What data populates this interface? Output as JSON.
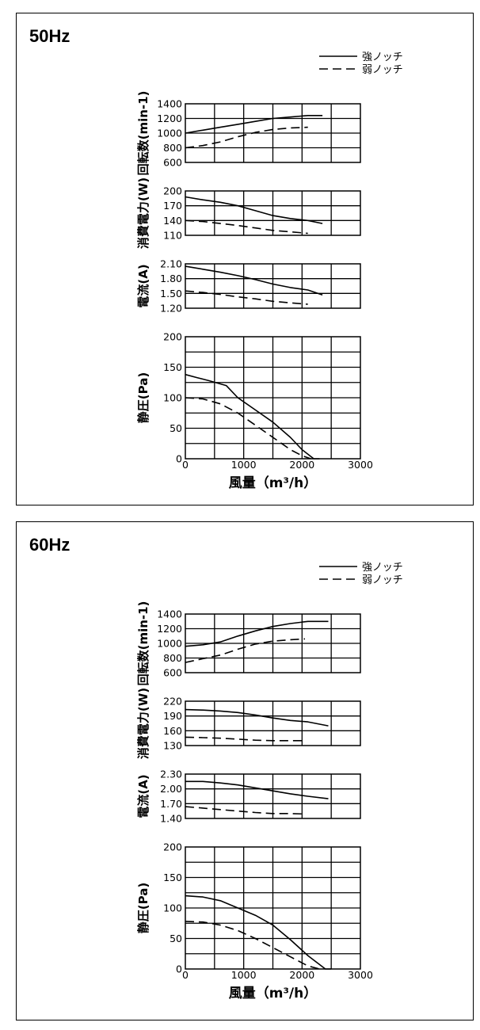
{
  "chart_data": [
    {
      "type": "line",
      "title": "50Hz",
      "legend": {
        "placement": "top-right",
        "entries": [
          "強ノッチ",
          "弱ノッチ"
        ]
      },
      "xlabel": "風量（m³/h）",
      "xlim": [
        0,
        3000
      ],
      "x_ticks": [
        "0",
        "1000",
        "2000",
        "3000"
      ],
      "subplots": [
        {
          "ylabel": "回転数(min-1)",
          "ylim": [
            600,
            1400
          ],
          "y_ticks": [
            "1400",
            "1200",
            "1000",
            "800",
            "600"
          ],
          "series": [
            {
              "name": "強ノッチ",
              "dash": "solid",
              "x": [
                0,
                300,
                600,
                900,
                1200,
                1500,
                1800,
                2100,
                2350
              ],
              "y": [
                1000,
                1040,
                1080,
                1120,
                1160,
                1200,
                1220,
                1240,
                1240
              ]
            },
            {
              "name": "弱ノッチ",
              "dash": "dashed",
              "x": [
                0,
                300,
                600,
                900,
                1200,
                1500,
                1800,
                2100
              ],
              "y": [
                800,
                830,
                880,
                950,
                1010,
                1050,
                1070,
                1080
              ]
            }
          ]
        },
        {
          "ylabel": "消費電力(W)",
          "ylim": [
            110,
            200
          ],
          "y_ticks": [
            "200",
            "170",
            "140",
            "110"
          ],
          "series": [
            {
              "name": "強ノッチ",
              "dash": "solid",
              "x": [
                0,
                300,
                600,
                900,
                1200,
                1500,
                1800,
                2100,
                2350
              ],
              "y": [
                188,
                182,
                177,
                170,
                160,
                150,
                144,
                140,
                134
              ]
            },
            {
              "name": "弱ノッチ",
              "dash": "dashed",
              "x": [
                0,
                300,
                600,
                900,
                1200,
                1500,
                1800,
                2100
              ],
              "y": [
                140,
                138,
                134,
                130,
                125,
                120,
                117,
                114
              ]
            }
          ]
        },
        {
          "ylabel": "電流(A)",
          "ylim": [
            1.2,
            2.1
          ],
          "y_ticks": [
            "2.10",
            "1.80",
            "1.50",
            "1.20"
          ],
          "series": [
            {
              "name": "強ノッチ",
              "dash": "solid",
              "x": [
                0,
                300,
                600,
                900,
                1200,
                1500,
                1800,
                2100,
                2350
              ],
              "y": [
                2.05,
                1.99,
                1.93,
                1.86,
                1.78,
                1.69,
                1.62,
                1.57,
                1.47
              ]
            },
            {
              "name": "弱ノッチ",
              "dash": "dashed",
              "x": [
                0,
                300,
                600,
                900,
                1200,
                1500,
                1800,
                2100
              ],
              "y": [
                1.55,
                1.52,
                1.48,
                1.43,
                1.39,
                1.34,
                1.31,
                1.28
              ]
            }
          ]
        },
        {
          "ylabel": "静圧(Pa)",
          "ylim": [
            0,
            200
          ],
          "y_ticks": [
            "200",
            "150",
            "100",
            "50",
            "0"
          ],
          "series": [
            {
              "name": "強ノッチ",
              "dash": "solid",
              "x": [
                0,
                200,
                400,
                700,
                900,
                1200,
                1500,
                1800,
                2000,
                2200,
                2300
              ],
              "y": [
                138,
                133,
                128,
                120,
                100,
                80,
                60,
                35,
                15,
                0,
                0
              ]
            },
            {
              "name": "弱ノッチ",
              "dash": "dashed",
              "x": [
                0,
                300,
                600,
                900,
                1200,
                1500,
                1800,
                2000,
                2150
              ],
              "y": [
                100,
                98,
                90,
                75,
                55,
                35,
                15,
                5,
                0
              ]
            }
          ]
        }
      ]
    },
    {
      "type": "line",
      "title": "60Hz",
      "legend": {
        "placement": "top-right",
        "entries": [
          "強ノッチ",
          "弱ノッチ"
        ]
      },
      "xlabel": "風量（m³/h）",
      "xlim": [
        0,
        3000
      ],
      "x_ticks": [
        "0",
        "1000",
        "2000",
        "3000"
      ],
      "subplots": [
        {
          "ylabel": "回転数(min-1)",
          "ylim": [
            600,
            1400
          ],
          "y_ticks": [
            "1400",
            "1200",
            "1000",
            "800",
            "600"
          ],
          "series": [
            {
              "name": "強ノッチ",
              "dash": "solid",
              "x": [
                0,
                300,
                600,
                900,
                1200,
                1500,
                1800,
                2100,
                2450
              ],
              "y": [
                960,
                980,
                1020,
                1100,
                1170,
                1230,
                1270,
                1300,
                1300
              ]
            },
            {
              "name": "弱ノッチ",
              "dash": "dashed",
              "x": [
                0,
                300,
                600,
                900,
                1200,
                1500,
                1800,
                2050
              ],
              "y": [
                740,
                790,
                840,
                920,
                990,
                1030,
                1050,
                1060
              ]
            }
          ]
        },
        {
          "ylabel": "消費電力(W)",
          "ylim": [
            130,
            220
          ],
          "y_ticks": [
            "220",
            "190",
            "160",
            "130"
          ],
          "series": [
            {
              "name": "強ノッチ",
              "dash": "solid",
              "x": [
                0,
                300,
                600,
                900,
                1200,
                1500,
                1800,
                2100,
                2450
              ],
              "y": [
                203,
                202,
                200,
                197,
                192,
                186,
                181,
                178,
                170
              ]
            },
            {
              "name": "弱ノッチ",
              "dash": "dashed",
              "x": [
                0,
                300,
                600,
                900,
                1200,
                1500,
                1800,
                2050
              ],
              "y": [
                147,
                146,
                145,
                143,
                141,
                140,
                140,
                140
              ]
            }
          ]
        },
        {
          "ylabel": "電流(A)",
          "ylim": [
            1.4,
            2.3
          ],
          "y_ticks": [
            "2.30",
            "2.00",
            "1.70",
            "1.40"
          ],
          "series": [
            {
              "name": "強ノッチ",
              "dash": "solid",
              "x": [
                0,
                300,
                600,
                900,
                1200,
                1500,
                1800,
                2100,
                2450
              ],
              "y": [
                2.15,
                2.15,
                2.12,
                2.08,
                2.02,
                1.96,
                1.9,
                1.85,
                1.8
              ]
            },
            {
              "name": "弱ノッチ",
              "dash": "dashed",
              "x": [
                0,
                300,
                600,
                900,
                1200,
                1500,
                1800,
                2050
              ],
              "y": [
                1.64,
                1.61,
                1.58,
                1.55,
                1.52,
                1.5,
                1.5,
                1.49
              ]
            }
          ]
        },
        {
          "ylabel": "静圧(Pa)",
          "ylim": [
            0,
            200
          ],
          "y_ticks": [
            "200",
            "150",
            "100",
            "50",
            "0"
          ],
          "series": [
            {
              "name": "強ノッチ",
              "dash": "solid",
              "x": [
                0,
                300,
                600,
                900,
                1200,
                1500,
                1800,
                2100,
                2400,
                2500
              ],
              "y": [
                120,
                118,
                112,
                100,
                88,
                72,
                48,
                22,
                0,
                0
              ]
            },
            {
              "name": "弱ノッチ",
              "dash": "dashed",
              "x": [
                0,
                300,
                600,
                900,
                1200,
                1500,
                1800,
                2100,
                2300
              ],
              "y": [
                78,
                77,
                72,
                63,
                50,
                35,
                20,
                5,
                0
              ]
            }
          ]
        }
      ]
    }
  ]
}
